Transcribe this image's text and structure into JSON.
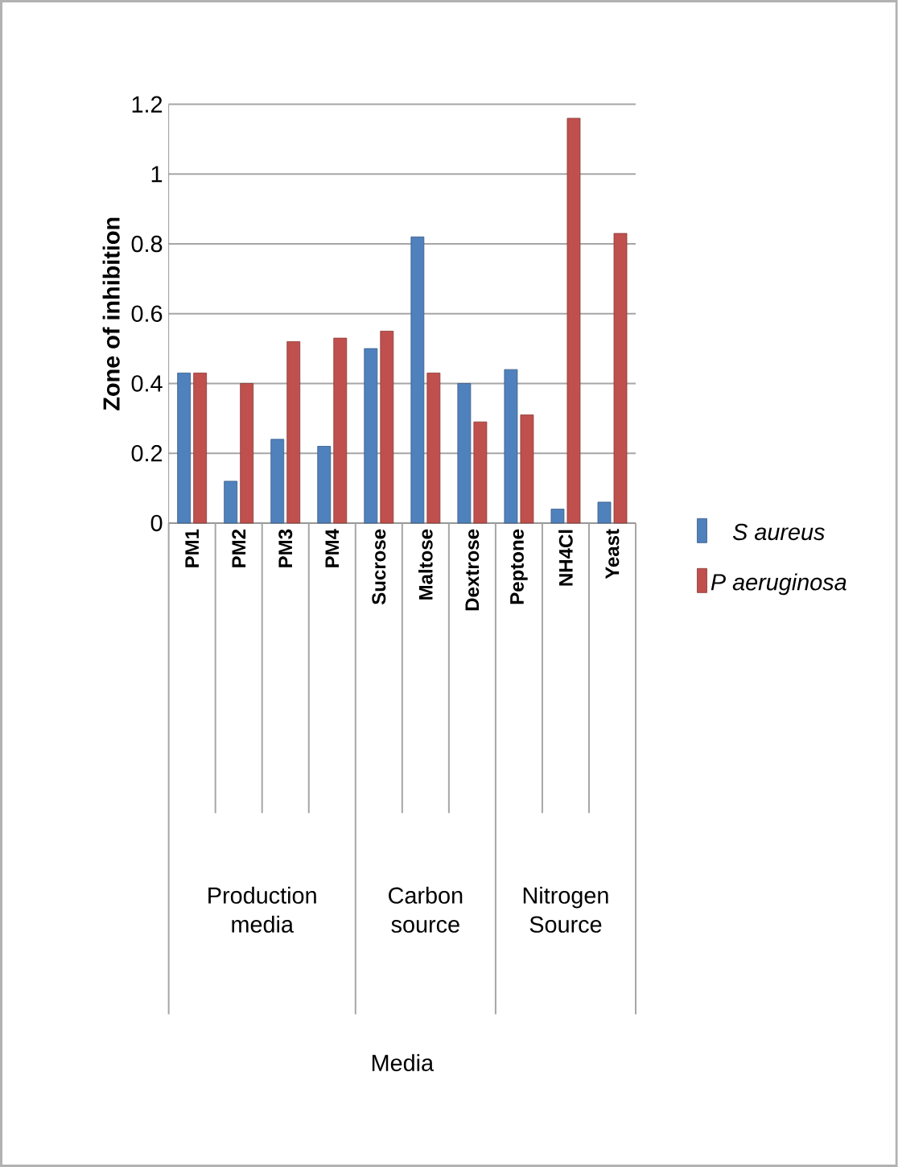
{
  "chart_data": {
    "type": "bar",
    "ylabel": "Zone of inhibition",
    "categories": [
      "PM1",
      "PM2",
      "PM3",
      "PM4",
      "Sucrose",
      "Maltose",
      "Dextrose",
      "Peptone",
      "NH4Cl",
      "Yeast"
    ],
    "series": [
      {
        "name": "S aureus",
        "color": "#4f81bd",
        "values": [
          0.43,
          0.12,
          0.24,
          0.22,
          0.5,
          0.82,
          0.4,
          0.44,
          0.04,
          0.06
        ]
      },
      {
        "name": "P aeruginosa",
        "color": "#c0504d",
        "values": [
          0.43,
          0.4,
          0.52,
          0.53,
          0.55,
          0.43,
          0.29,
          0.31,
          1.16,
          0.83
        ]
      }
    ],
    "annotations": [
      "Production media",
      "Carbon source",
      "Nitrogen Source",
      "Media"
    ],
    "ylim": [
      0,
      1.2
    ],
    "yticks": [
      0,
      0.2,
      0.4,
      0.6,
      0.8,
      1,
      1.2
    ],
    "grid": "y",
    "legend": "right"
  }
}
